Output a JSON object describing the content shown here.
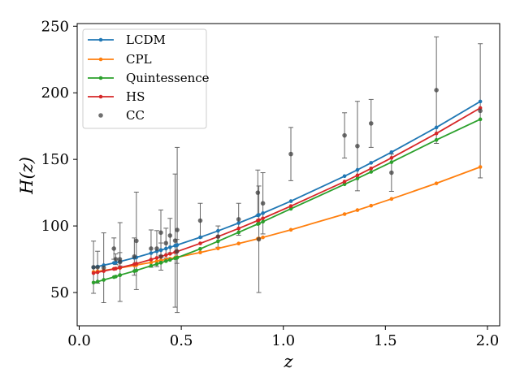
{
  "chart_data": {
    "type": "line",
    "xlabel": "z",
    "ylabel": "H(z)",
    "xlim": [
      -0.01,
      2.06
    ],
    "ylim": [
      25,
      252
    ],
    "xticks": [
      "0.0",
      "0.5",
      "1.0",
      "1.5",
      "2.0"
    ],
    "yticks": [
      "50",
      "100",
      "150",
      "200",
      "250"
    ],
    "legend_position": "top-left",
    "model_z": [
      0.07,
      0.09,
      0.12,
      0.17,
      0.179,
      0.199,
      0.2,
      0.27,
      0.28,
      0.352,
      0.38,
      0.4,
      0.4004,
      0.425,
      0.445,
      0.47,
      0.4783,
      0.48,
      0.593,
      0.68,
      0.781,
      0.875,
      0.88,
      0.9,
      1.037,
      1.3,
      1.363,
      1.43,
      1.53,
      1.75,
      1.965
    ],
    "series": [
      {
        "name": "LCDM",
        "color": "#1f77b4",
        "values": [
          68.9,
          69.5,
          70.5,
          72.2,
          72.5,
          73.3,
          73.3,
          76.0,
          76.4,
          79.6,
          80.9,
          81.8,
          81.9,
          83.0,
          84.0,
          85.2,
          85.6,
          85.7,
          91.5,
          96.3,
          102.2,
          108.0,
          108.3,
          109.6,
          118.6,
          137.4,
          142.1,
          147.4,
          155.4,
          174.0,
          193.5
        ]
      },
      {
        "name": "CPL",
        "color": "#ff7f0e",
        "values": [
          65.4,
          65.9,
          66.6,
          67.8,
          68.0,
          68.5,
          68.5,
          70.3,
          70.6,
          72.6,
          73.5,
          74.1,
          74.1,
          74.8,
          75.4,
          76.2,
          76.4,
          76.5,
          80.1,
          83.1,
          86.8,
          90.4,
          90.6,
          91.4,
          97.1,
          108.9,
          111.9,
          115.2,
          120.3,
          132.0,
          144.3
        ]
      },
      {
        "name": "Quintessence",
        "color": "#2ca02c",
        "values": [
          57.5,
          58.2,
          59.5,
          61.6,
          62.0,
          63.0,
          63.1,
          66.1,
          66.6,
          70.1,
          71.4,
          72.4,
          72.4,
          73.6,
          74.5,
          75.7,
          76.1,
          76.2,
          82.8,
          88.5,
          95.2,
          101.5,
          101.8,
          103.2,
          112.9,
          131.3,
          135.7,
          140.6,
          147.9,
          164.6,
          180.1
        ]
      },
      {
        "name": "HS",
        "color": "#d62728",
        "values": [
          64.6,
          65.2,
          66.1,
          67.7,
          68.0,
          68.7,
          68.7,
          71.3,
          71.7,
          74.8,
          76.0,
          77.0,
          77.0,
          78.2,
          79.1,
          80.3,
          80.7,
          80.8,
          86.9,
          92.0,
          98.1,
          104.1,
          104.4,
          105.7,
          114.9,
          133.3,
          138.0,
          143.2,
          151.1,
          169.5,
          188.6
        ]
      }
    ],
    "observations": {
      "name": "CC",
      "color": "#404040",
      "points": [
        {
          "z": 0.07,
          "H": 69.0,
          "err": 19.6
        },
        {
          "z": 0.09,
          "H": 69.0,
          "err": 12.0
        },
        {
          "z": 0.12,
          "H": 68.6,
          "err": 26.2
        },
        {
          "z": 0.17,
          "H": 83.0,
          "err": 8.0
        },
        {
          "z": 0.179,
          "H": 75.0,
          "err": 4.0
        },
        {
          "z": 0.199,
          "H": 75.0,
          "err": 5.0
        },
        {
          "z": 0.2,
          "H": 72.9,
          "err": 29.6
        },
        {
          "z": 0.27,
          "H": 77.0,
          "err": 14.0
        },
        {
          "z": 0.28,
          "H": 88.8,
          "err": 36.6
        },
        {
          "z": 0.352,
          "H": 83.0,
          "err": 14.0
        },
        {
          "z": 0.38,
          "H": 83.0,
          "err": 13.5
        },
        {
          "z": 0.4,
          "H": 95.0,
          "err": 17.0
        },
        {
          "z": 0.4004,
          "H": 77.0,
          "err": 10.2
        },
        {
          "z": 0.425,
          "H": 87.1,
          "err": 11.2
        },
        {
          "z": 0.445,
          "H": 92.8,
          "err": 12.9
        },
        {
          "z": 0.47,
          "H": 89.0,
          "err": 50.0
        },
        {
          "z": 0.4783,
          "H": 80.9,
          "err": 9.0
        },
        {
          "z": 0.48,
          "H": 97.0,
          "err": 62.0
        },
        {
          "z": 0.593,
          "H": 104.0,
          "err": 13.0
        },
        {
          "z": 0.68,
          "H": 92.0,
          "err": 8.0
        },
        {
          "z": 0.781,
          "H": 105.0,
          "err": 12.0
        },
        {
          "z": 0.875,
          "H": 125.0,
          "err": 17.0
        },
        {
          "z": 0.88,
          "H": 90.0,
          "err": 40.0
        },
        {
          "z": 0.9,
          "H": 117.0,
          "err": 23.0
        },
        {
          "z": 1.037,
          "H": 154.0,
          "err": 20.0
        },
        {
          "z": 1.3,
          "H": 168.0,
          "err": 17.0
        },
        {
          "z": 1.363,
          "H": 160.0,
          "err": 33.6
        },
        {
          "z": 1.43,
          "H": 177.0,
          "err": 18.0
        },
        {
          "z": 1.53,
          "H": 140.0,
          "err": 14.0
        },
        {
          "z": 1.75,
          "H": 202.0,
          "err": 40.0
        },
        {
          "z": 1.965,
          "H": 186.5,
          "err": 50.4
        }
      ]
    }
  }
}
